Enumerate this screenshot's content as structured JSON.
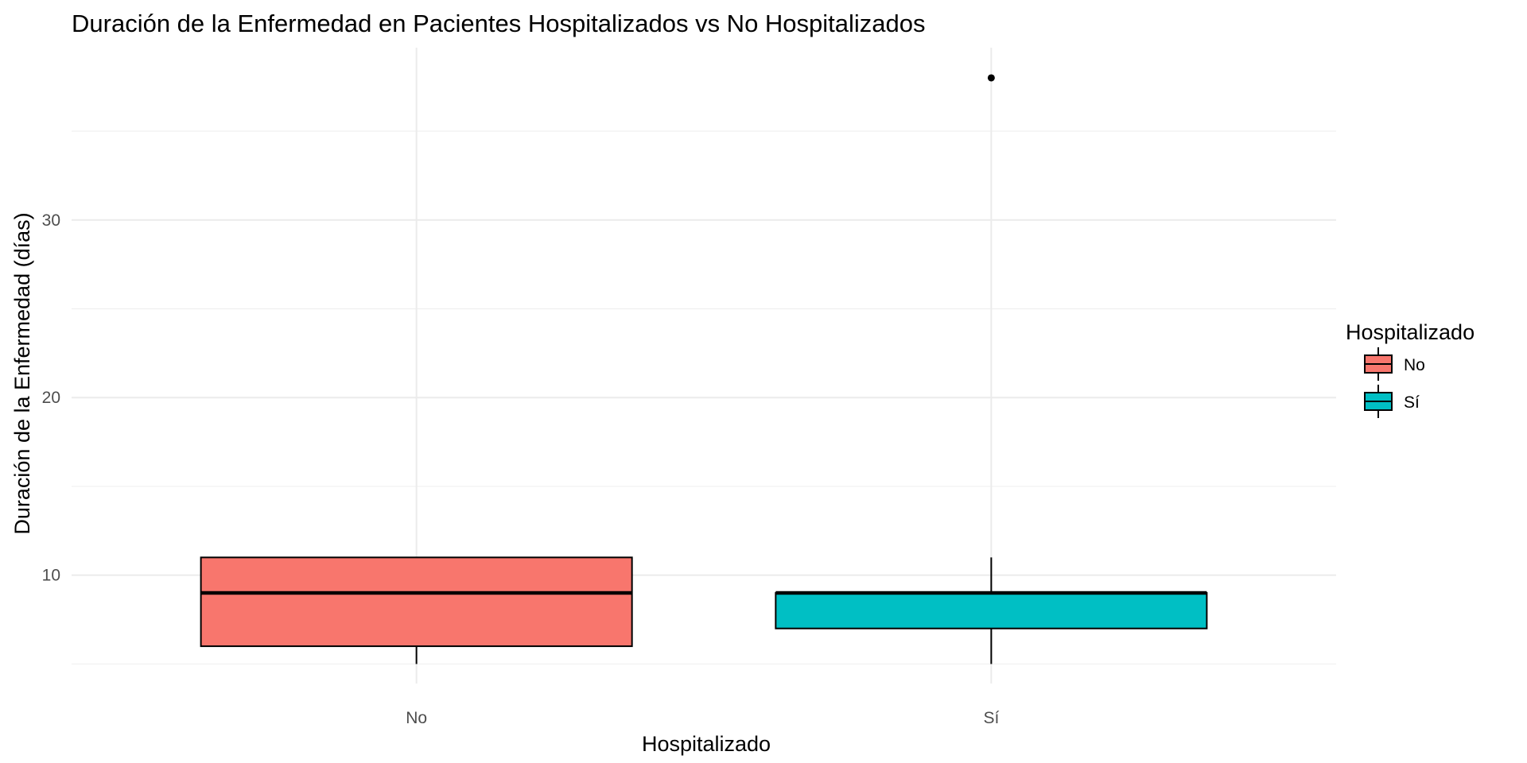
{
  "chart_data": {
    "type": "boxplot",
    "title": "Duración de la Enfermedad en Pacientes Hospitalizados vs No Hospitalizados",
    "xlabel": "Hospitalizado",
    "ylabel": "Duración de la Enfermedad (días)",
    "categories": [
      "No",
      "Sí"
    ],
    "ylim": [
      3.9,
      39.7
    ],
    "yticks": [
      10,
      20,
      30
    ],
    "grid": true,
    "legend": {
      "title": "Hospitalizado",
      "position": "right",
      "labels": [
        "No",
        "Sí"
      ]
    },
    "boxes": [
      {
        "name": "No",
        "whisker_low": 5,
        "q1": 6,
        "median": 9,
        "q3": 11,
        "whisker_high": 11,
        "outliers": [],
        "color": "#F8766D"
      },
      {
        "name": "Sí",
        "whisker_low": 5,
        "q1": 7,
        "median": 9,
        "q3": 9,
        "whisker_high": 11,
        "outliers": [
          38
        ],
        "color": "#00BFC4"
      }
    ]
  }
}
